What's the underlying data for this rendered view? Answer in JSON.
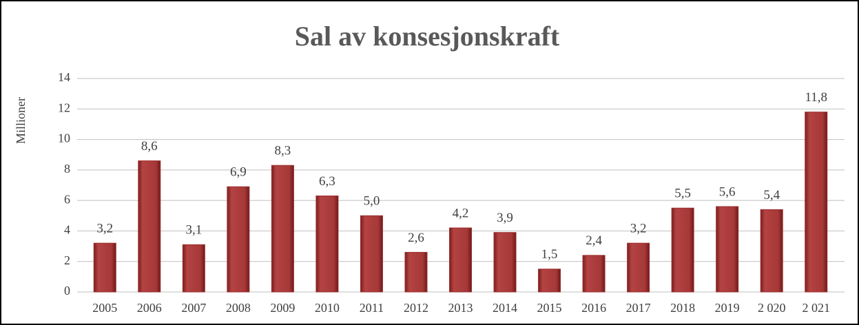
{
  "chart_data": {
    "type": "bar",
    "title": "Sal av konsesjonskraft",
    "y_label": "Millioner",
    "categories": [
      "2005",
      "2006",
      "2007",
      "2008",
      "2009",
      "2010",
      "2011",
      "2012",
      "2013",
      "2014",
      "2015",
      "2016",
      "2017",
      "2018",
      "2019",
      "2 020",
      "2 021"
    ],
    "values": [
      3.2,
      8.6,
      3.1,
      6.9,
      8.3,
      6.3,
      5.0,
      2.6,
      4.2,
      3.9,
      1.5,
      2.4,
      3.2,
      5.5,
      5.6,
      5.4,
      11.8
    ],
    "value_labels": [
      "3,2",
      "8,6",
      "3,1",
      "6,9",
      "8,3",
      "6,3",
      "5,0",
      "2,6",
      "4,2",
      "3,9",
      "1,5",
      "2,4",
      "3,2",
      "5,5",
      "5,6",
      "5,4",
      "11,8"
    ],
    "color": "#9b2d2d",
    "ylim": [
      0,
      14
    ],
    "yticks": [
      0,
      2,
      4,
      6,
      8,
      10,
      12,
      14
    ],
    "grid": true
  }
}
